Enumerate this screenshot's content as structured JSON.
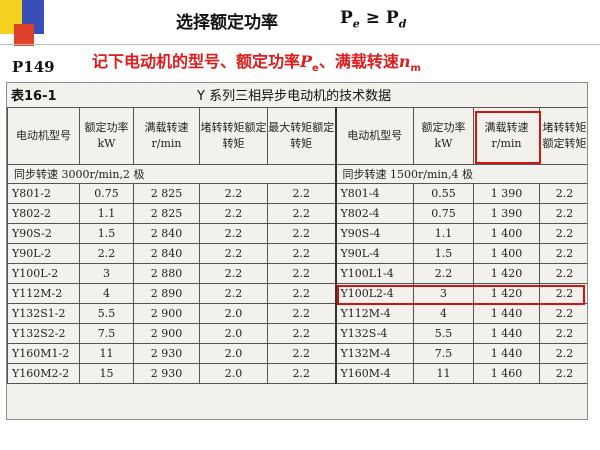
{
  "header": {
    "title": "选择额定功率",
    "formula_left": "P",
    "formula_left_sub": "e",
    "formula_op": "≥",
    "formula_right": "P",
    "formula_right_sub": "d"
  },
  "page_ref": "P149",
  "subtitle": {
    "text_1": "记下电动机的型号、额定功率",
    "p": "P",
    "p_sub": "e",
    "text_2": "、满载转速",
    "n": "n",
    "n_sub": "m"
  },
  "table": {
    "label": "表16-1",
    "title": "Y 系列三相异步电动机的技术数据",
    "headers_left": [
      "电动机型号",
      "额定功率kW",
      "满载转速r/min",
      "堵转转矩额定转矩",
      "最大转矩额定转矩"
    ],
    "headers_right": [
      "电动机型号",
      "额定功率kW",
      "满载转速r/min",
      "堵转转矩额定转矩"
    ],
    "group_left": "同步转速 3000r/min,2 极",
    "group_right": "同步转速 1500r/min,4 极",
    "rows": [
      {
        "m1": "Y801-2",
        "p1": "0.75",
        "n1": "2 825",
        "t1": "2.2",
        "x1": "2.2",
        "m2": "Y801-4",
        "p2": "0.55",
        "n2": "1 390",
        "t2": "2.2"
      },
      {
        "m1": "Y802-2",
        "p1": "1.1",
        "n1": "2 825",
        "t1": "2.2",
        "x1": "2.2",
        "m2": "Y802-4",
        "p2": "0.75",
        "n2": "1 390",
        "t2": "2.2"
      },
      {
        "m1": "Y90S-2",
        "p1": "1.5",
        "n1": "2 840",
        "t1": "2.2",
        "x1": "2.2",
        "m2": "Y90S-4",
        "p2": "1.1",
        "n2": "1 400",
        "t2": "2.2"
      },
      {
        "m1": "Y90L-2",
        "p1": "2.2",
        "n1": "2 840",
        "t1": "2.2",
        "x1": "2.2",
        "m2": "Y90L-4",
        "p2": "1.5",
        "n2": "1 400",
        "t2": "2.2"
      },
      {
        "m1": "Y100L-2",
        "p1": "3",
        "n1": "2 880",
        "t1": "2.2",
        "x1": "2.2",
        "m2": "Y100L1-4",
        "p2": "2.2",
        "n2": "1 420",
        "t2": "2.2"
      },
      {
        "m1": "Y112M-2",
        "p1": "4",
        "n1": "2 890",
        "t1": "2.2",
        "x1": "2.2",
        "m2": "Y100L2-4",
        "p2": "3",
        "n2": "1 420",
        "t2": "2.2"
      },
      {
        "m1": "Y132S1-2",
        "p1": "5.5",
        "n1": "2 900",
        "t1": "2.0",
        "x1": "2.2",
        "m2": "Y112M-4",
        "p2": "4",
        "n2": "1 440",
        "t2": "2.2"
      },
      {
        "m1": "Y132S2-2",
        "p1": "7.5",
        "n1": "2 900",
        "t1": "2.0",
        "x1": "2.2",
        "m2": "Y132S-4",
        "p2": "5.5",
        "n2": "1 440",
        "t2": "2.2"
      },
      {
        "m1": "Y160M1-2",
        "p1": "11",
        "n1": "2 930",
        "t1": "2.0",
        "x1": "2.2",
        "m2": "Y132M-4",
        "p2": "7.5",
        "n2": "1 440",
        "t2": "2.2"
      },
      {
        "m1": "Y160M2-2",
        "p1": "15",
        "n1": "2 930",
        "t1": "2.0",
        "x1": "2.2",
        "m2": "Y160M-4",
        "p2": "11",
        "n2": "1 460",
        "t2": "2.2"
      }
    ]
  },
  "colors": {
    "highlight": "#d01515",
    "subtitle": "#e01a1a",
    "deco_yellow": "#f5d21f",
    "deco_blue": "#3a4fb5",
    "deco_red": "#e0402a"
  }
}
